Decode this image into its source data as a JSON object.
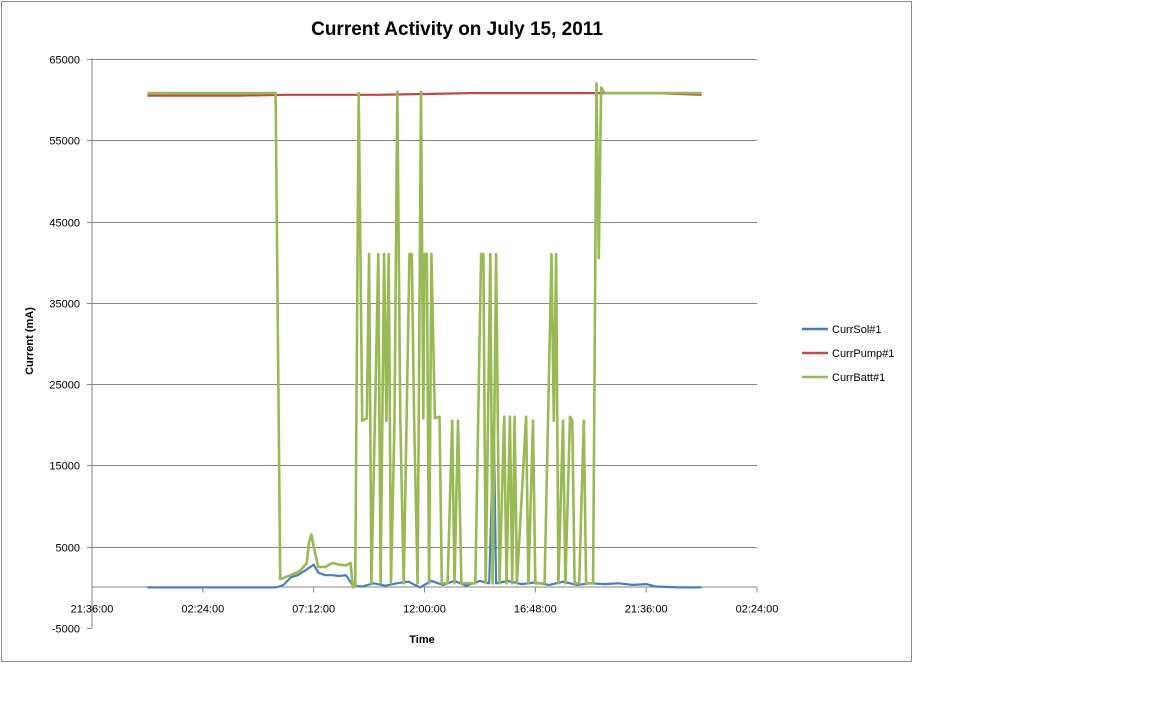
{
  "chart_data": {
    "type": "line",
    "title": "Current Activity on July 15, 2011",
    "xlabel": "Time",
    "ylabel": "Current  (mA)",
    "ylim": [
      -5000,
      65000
    ],
    "y_ticks": [
      -5000,
      5000,
      15000,
      25000,
      35000,
      45000,
      55000,
      65000
    ],
    "xlim": [
      "21:36:00",
      "02:24:00"
    ],
    "x_ticks": [
      "21:36:00",
      "02:24:00",
      "07:12:00",
      "12:00:00",
      "16:48:00",
      "21:36:00",
      "02:24:00"
    ],
    "x_tick_hours": [
      -2.4,
      2.4,
      7.2,
      12.0,
      16.8,
      21.6,
      26.4
    ],
    "grid": "horizontal",
    "legend_position": "right",
    "series": [
      {
        "name": "CurrSol#1",
        "color": "#4a7ebb",
        "points": [
          [
            0.0,
            0
          ],
          [
            2.0,
            0
          ],
          [
            4.0,
            0
          ],
          [
            5.6,
            0
          ],
          [
            5.9,
            300
          ],
          [
            6.2,
            1200
          ],
          [
            6.5,
            1500
          ],
          [
            6.8,
            2000
          ],
          [
            7.0,
            2400
          ],
          [
            7.2,
            2800
          ],
          [
            7.4,
            1800
          ],
          [
            7.7,
            1500
          ],
          [
            8.0,
            1500
          ],
          [
            8.3,
            1400
          ],
          [
            8.6,
            1500
          ],
          [
            8.9,
            200
          ],
          [
            9.3,
            100
          ],
          [
            9.8,
            500
          ],
          [
            10.3,
            200
          ],
          [
            10.8,
            500
          ],
          [
            11.3,
            700
          ],
          [
            11.8,
            0
          ],
          [
            12.3,
            800
          ],
          [
            12.8,
            300
          ],
          [
            13.3,
            800
          ],
          [
            13.8,
            200
          ],
          [
            14.4,
            800
          ],
          [
            14.8,
            500
          ],
          [
            15.0,
            20000
          ],
          [
            15.1,
            500
          ],
          [
            15.6,
            800
          ],
          [
            16.2,
            400
          ],
          [
            16.8,
            600
          ],
          [
            17.4,
            300
          ],
          [
            18.0,
            700
          ],
          [
            18.6,
            300
          ],
          [
            19.2,
            500
          ],
          [
            19.8,
            400
          ],
          [
            20.4,
            500
          ],
          [
            21.0,
            300
          ],
          [
            21.6,
            400
          ],
          [
            22.0,
            100
          ],
          [
            23.0,
            0
          ],
          [
            24.0,
            0
          ]
        ]
      },
      {
        "name": "CurrPump#1",
        "color": "#be4b48",
        "points": [
          [
            0.0,
            60500
          ],
          [
            2.0,
            60500
          ],
          [
            4.0,
            60500
          ],
          [
            6.0,
            60600
          ],
          [
            8.0,
            60600
          ],
          [
            10.0,
            60600
          ],
          [
            12.0,
            60700
          ],
          [
            14.0,
            60800
          ],
          [
            16.0,
            60800
          ],
          [
            18.0,
            60800
          ],
          [
            20.0,
            60800
          ],
          [
            22.0,
            60800
          ],
          [
            24.0,
            60600
          ]
        ]
      },
      {
        "name": "CurrBatt#1",
        "color": "#98b954",
        "points": [
          [
            0.0,
            60800
          ],
          [
            3.0,
            60800
          ],
          [
            5.4,
            60800
          ],
          [
            5.55,
            60800
          ],
          [
            5.75,
            1000
          ],
          [
            6.2,
            1500
          ],
          [
            6.6,
            2000
          ],
          [
            6.9,
            3000
          ],
          [
            7.0,
            5500
          ],
          [
            7.1,
            6500
          ],
          [
            7.2,
            5000
          ],
          [
            7.4,
            2500
          ],
          [
            7.7,
            2500
          ],
          [
            8.0,
            3000
          ],
          [
            8.3,
            2800
          ],
          [
            8.6,
            2700
          ],
          [
            8.8,
            3000
          ],
          [
            8.9,
            0
          ],
          [
            9.0,
            100
          ],
          [
            9.15,
            60800
          ],
          [
            9.3,
            20500
          ],
          [
            9.5,
            20800
          ],
          [
            9.6,
            41000
          ],
          [
            9.7,
            500
          ],
          [
            9.85,
            20500
          ],
          [
            10.0,
            41000
          ],
          [
            10.1,
            500
          ],
          [
            10.25,
            41000
          ],
          [
            10.35,
            20500
          ],
          [
            10.45,
            41000
          ],
          [
            10.55,
            500
          ],
          [
            10.7,
            20500
          ],
          [
            10.82,
            61000
          ],
          [
            10.95,
            20800
          ],
          [
            11.1,
            500
          ],
          [
            11.35,
            41000
          ],
          [
            11.45,
            41000
          ],
          [
            11.55,
            20800
          ],
          [
            11.7,
            500
          ],
          [
            11.85,
            61000
          ],
          [
            11.95,
            20800
          ],
          [
            12.0,
            41000
          ],
          [
            12.1,
            41000
          ],
          [
            12.2,
            500
          ],
          [
            12.3,
            41000
          ],
          [
            12.45,
            20800
          ],
          [
            12.65,
            21000
          ],
          [
            12.75,
            500
          ],
          [
            13.0,
            500
          ],
          [
            13.2,
            20500
          ],
          [
            13.3,
            500
          ],
          [
            13.45,
            20500
          ],
          [
            13.6,
            500
          ],
          [
            14.2,
            500
          ],
          [
            14.45,
            41000
          ],
          [
            14.55,
            41000
          ],
          [
            14.65,
            500
          ],
          [
            14.85,
            41000
          ],
          [
            14.95,
            500
          ],
          [
            15.1,
            41000
          ],
          [
            15.25,
            500
          ],
          [
            15.45,
            21000
          ],
          [
            15.55,
            500
          ],
          [
            15.7,
            21000
          ],
          [
            15.8,
            500
          ],
          [
            15.9,
            21000
          ],
          [
            16.0,
            500
          ],
          [
            16.4,
            21000
          ],
          [
            16.5,
            500
          ],
          [
            16.7,
            20500
          ],
          [
            16.8,
            500
          ],
          [
            17.2,
            500
          ],
          [
            17.35,
            20500
          ],
          [
            17.5,
            41000
          ],
          [
            17.6,
            20500
          ],
          [
            17.7,
            41000
          ],
          [
            17.8,
            500
          ],
          [
            18.0,
            20500
          ],
          [
            18.1,
            500
          ],
          [
            18.3,
            21000
          ],
          [
            18.4,
            20500
          ],
          [
            18.5,
            500
          ],
          [
            18.7,
            500
          ],
          [
            18.9,
            20500
          ],
          [
            19.0,
            500
          ],
          [
            19.3,
            500
          ],
          [
            19.45,
            62000
          ],
          [
            19.55,
            40500
          ],
          [
            19.65,
            61500
          ],
          [
            19.8,
            60800
          ],
          [
            20.5,
            60800
          ],
          [
            22.0,
            60800
          ],
          [
            24.0,
            60800
          ]
        ]
      }
    ]
  }
}
